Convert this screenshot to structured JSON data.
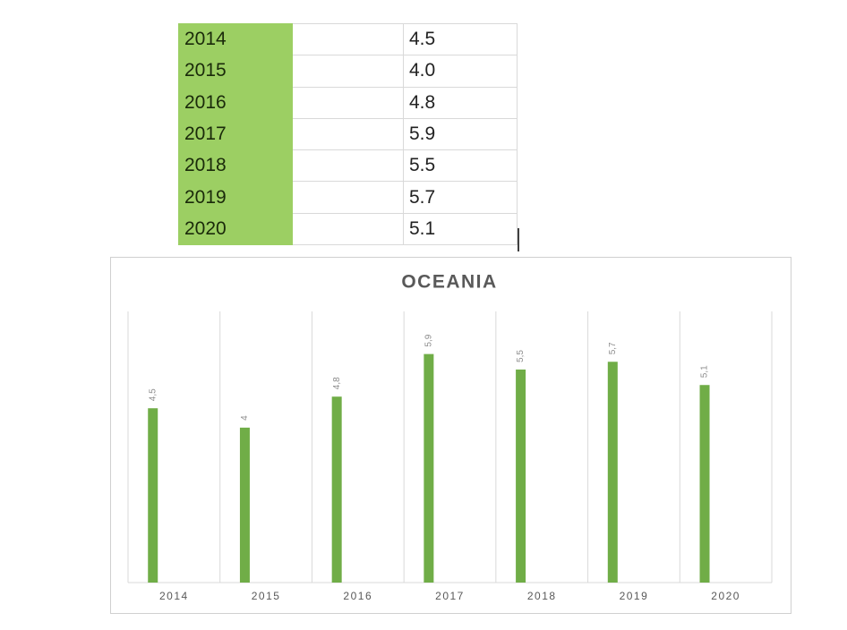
{
  "table": {
    "rows": [
      [
        "2014",
        "4.5"
      ],
      [
        "2015",
        "4.0"
      ],
      [
        "2016",
        "4.8"
      ],
      [
        "2017",
        "5.9"
      ],
      [
        "2018",
        "5.5"
      ],
      [
        "2019",
        "5.7"
      ],
      [
        "2020",
        "5.1"
      ]
    ]
  },
  "chart_data": {
    "type": "bar",
    "title": "OCEANIA",
    "categories": [
      "2014",
      "2015",
      "2016",
      "2017",
      "2018",
      "2019",
      "2020"
    ],
    "values": [
      4.5,
      4,
      4.8,
      5.9,
      5.5,
      5.7,
      5.1
    ],
    "value_labels": [
      "4,5",
      "4",
      "4,8",
      "5,9",
      "5,5",
      "5,7",
      "5,1"
    ],
    "color": "#70ad47",
    "ylim": [
      0,
      7
    ],
    "grid": true
  }
}
